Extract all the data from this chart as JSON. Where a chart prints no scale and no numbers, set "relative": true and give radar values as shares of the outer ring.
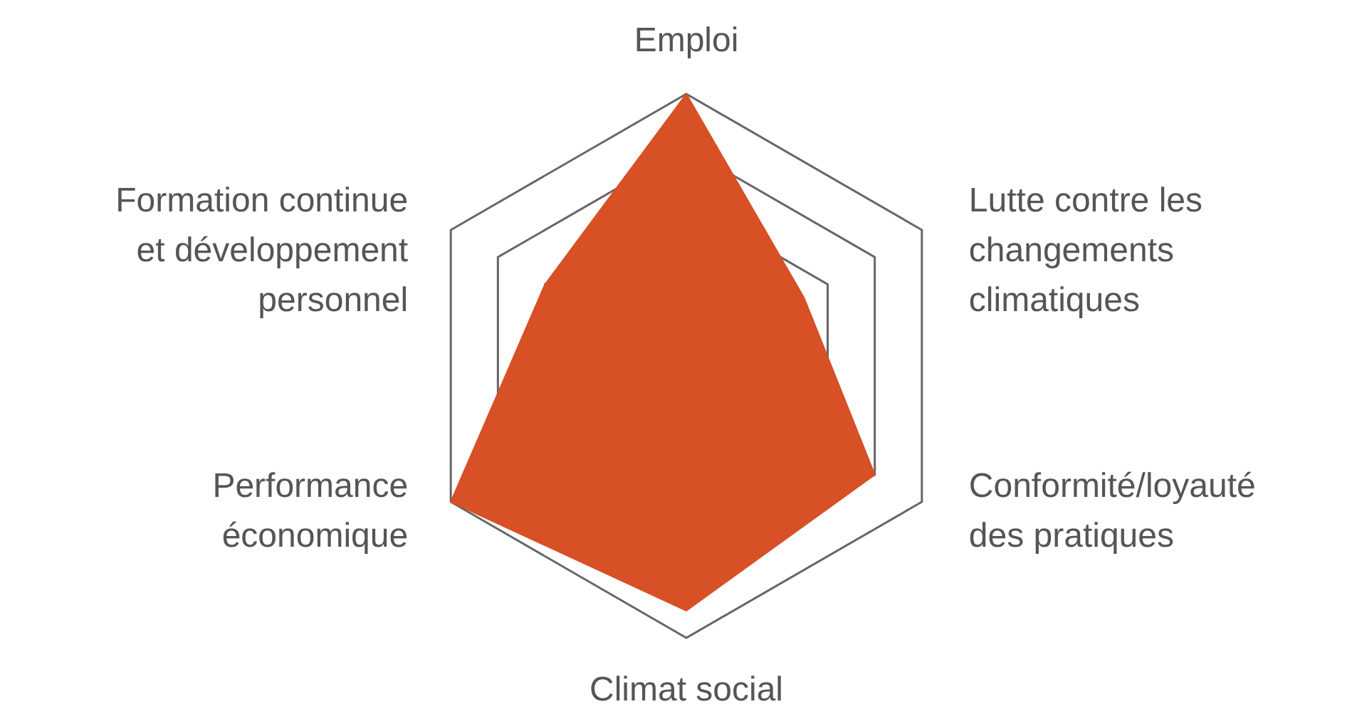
{
  "chart_data": {
    "type": "radar",
    "relative": true,
    "categories": [
      "Emploi",
      "Lutte contre les changements climatiques",
      "Conformité/loyauté des pratiques",
      "Climat social",
      "Performance économique",
      "Formation continue et développement personnel"
    ],
    "series": [
      {
        "color": "#d75026",
        "values": [
          1,
          0.5,
          0.8,
          0.9,
          1,
          0.6
        ]
      }
    ]
  }
}
